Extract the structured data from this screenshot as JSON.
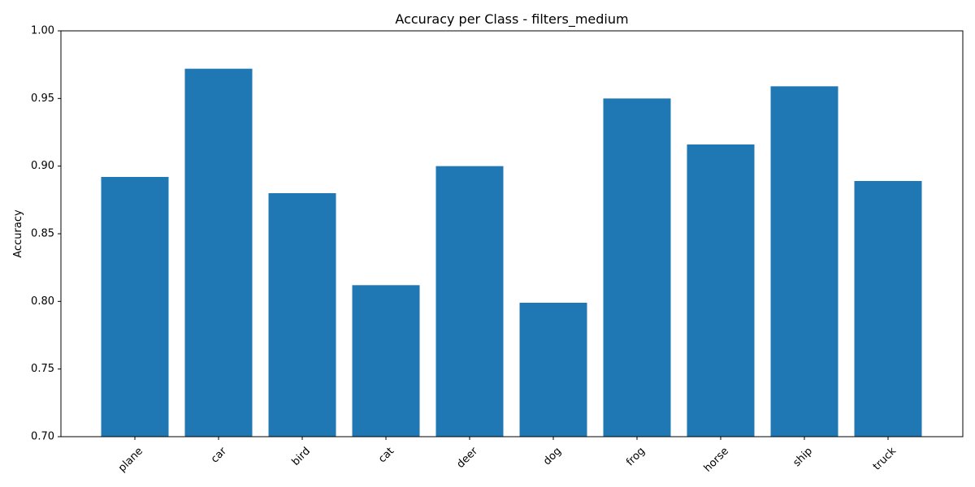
{
  "chart_data": {
    "type": "bar",
    "title": "Accuracy per Class - filters_medium",
    "xlabel": "",
    "ylabel": "Accuracy",
    "categories": [
      "plane",
      "car",
      "bird",
      "cat",
      "deer",
      "dog",
      "frog",
      "horse",
      "ship",
      "truck"
    ],
    "values": [
      0.892,
      0.972,
      0.88,
      0.812,
      0.9,
      0.799,
      0.95,
      0.916,
      0.959,
      0.889
    ],
    "ylim": [
      0.7,
      1.0
    ],
    "yticks": [
      "0.70",
      "0.75",
      "0.80",
      "0.85",
      "0.90",
      "0.95",
      "1.00"
    ],
    "x_tick_rotation_deg": 45,
    "grid": false,
    "legend": "none",
    "bar_color": "#1f77b4"
  }
}
